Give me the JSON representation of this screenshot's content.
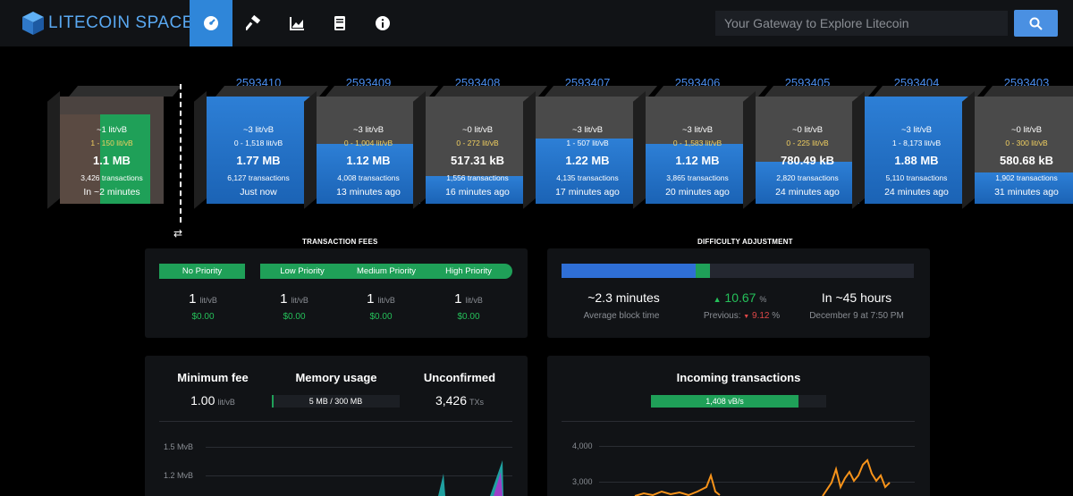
{
  "header": {
    "logo_text": "LITECOIN SPACE",
    "nav": [
      "dashboard-icon",
      "mining-hammer-icon",
      "graphs-icon",
      "docs-icon",
      "about-icon"
    ],
    "search_placeholder": "Your Gateway to Explore Litecoin"
  },
  "mempool_block": {
    "fee": "~1 lit/vB",
    "range": "1 - 150 lit/vB",
    "size": "1.1 MB",
    "tx": "3,426 transactions",
    "time": "In ~2 minutes"
  },
  "blocks": [
    {
      "height": "2593410",
      "fee": "~3 lit/vB",
      "range": "0 - 1,518 lit/vB",
      "size": "1.77 MB",
      "tx": "6,127 transactions",
      "time": "Just now",
      "fill": 1.0
    },
    {
      "height": "2593409",
      "fee": "~3 lit/vB",
      "range": "0 - 1,004 lit/vB",
      "size": "1.12 MB",
      "tx": "4,008 transactions",
      "time": "13 minutes ago",
      "fill": 0.56
    },
    {
      "height": "2593408",
      "fee": "~0 lit/vB",
      "range": "0 - 272 lit/vB",
      "size": "517.31 kB",
      "tx": "1,556 transactions",
      "time": "16 minutes ago",
      "fill": 0.26
    },
    {
      "height": "2593407",
      "fee": "~3 lit/vB",
      "range": "1 - 507 lit/vB",
      "size": "1.22 MB",
      "tx": "4,135 transactions",
      "time": "17 minutes ago",
      "fill": 0.61
    },
    {
      "height": "2593406",
      "fee": "~3 lit/vB",
      "range": "0 - 1,583 lit/vB",
      "size": "1.12 MB",
      "tx": "3,865 transactions",
      "time": "20 minutes ago",
      "fill": 0.56
    },
    {
      "height": "2593405",
      "fee": "~0 lit/vB",
      "range": "0 - 225 lit/vB",
      "size": "780.49 kB",
      "tx": "2,820 transactions",
      "time": "24 minutes ago",
      "fill": 0.39
    },
    {
      "height": "2593404",
      "fee": "~3 lit/vB",
      "range": "1 - 8,173 lit/vB",
      "size": "1.88 MB",
      "tx": "5,110 transactions",
      "time": "24 minutes ago",
      "fill": 1.0
    },
    {
      "height": "2593403",
      "fee": "~0 lit/vB",
      "range": "0 - 300 lit/vB",
      "size": "580.68 kB",
      "tx": "1,902 transactions",
      "time": "31 minutes ago",
      "fill": 0.29
    }
  ],
  "fees": {
    "title": "TRANSACTION FEES",
    "priorities": [
      {
        "label": "No Priority",
        "value": "1",
        "unit": "lit/vB",
        "usd": "$0.00"
      },
      {
        "label": "Low Priority",
        "value": "1",
        "unit": "lit/vB",
        "usd": "$0.00"
      },
      {
        "label": "Medium Priority",
        "value": "1",
        "unit": "lit/vB",
        "usd": "$0.00"
      },
      {
        "label": "High Priority",
        "value": "1",
        "unit": "lit/vB",
        "usd": "$0.00"
      }
    ]
  },
  "difficulty": {
    "title": "DIFFICULTY ADJUSTMENT",
    "block_time": "~2.3 minutes",
    "block_time_label": "Average block time",
    "change": "10.67",
    "change_unit": "%",
    "previous_label": "Previous:",
    "previous": "9.12",
    "previous_unit": "%",
    "eta": "In ~45 hours",
    "eta_date": "December 9 at 7:50 PM",
    "progress": 0.38,
    "remaining_progress": 0.04
  },
  "stats": {
    "min_fee_title": "Minimum fee",
    "min_fee": "1.00",
    "min_fee_unit": "lit/vB",
    "memory_title": "Memory usage",
    "memory": "5 MB / 300 MB",
    "unconfirmed_title": "Unconfirmed",
    "unconfirmed": "3,426",
    "unconfirmed_unit": "TXs",
    "axis": [
      "1.5 MvB",
      "1.2 MvB"
    ]
  },
  "incoming": {
    "title": "Incoming transactions",
    "vbytes": "1,408 vB/s",
    "axis": [
      "4,000",
      "3,000"
    ]
  },
  "colors": {
    "accent": "#2f86d9",
    "green": "#1fa058",
    "blue_link": "#4a8ef0"
  }
}
